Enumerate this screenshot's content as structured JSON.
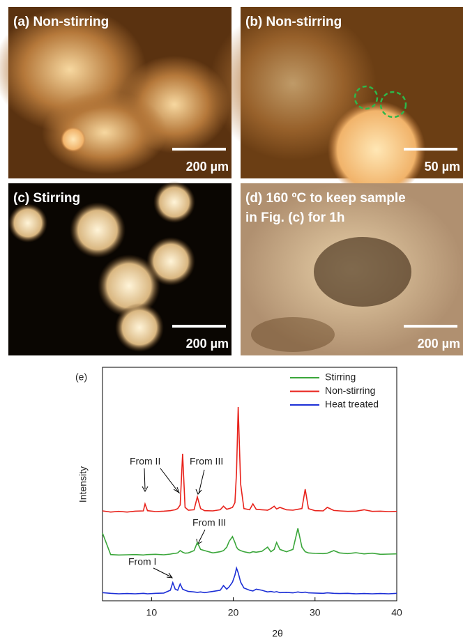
{
  "panels": [
    {
      "label": "(a) Non-stirring",
      "scale_bar": "200 µm"
    },
    {
      "label": "(b) Non-stirring",
      "scale_bar": "50 µm"
    },
    {
      "label": "(c) Stirring",
      "scale_bar": "200 µm"
    },
    {
      "label": "(d) 160 ºC to keep sample in Fig. (c) for 1h",
      "scale_bar": "200 µm"
    }
  ],
  "chart_data": {
    "type": "line",
    "panel_label": "(e)",
    "x_label": "2θ",
    "y_label": "Intensity",
    "xlim": [
      4,
      40
    ],
    "xticks": [
      10,
      20,
      30,
      40
    ],
    "ylim": [
      0,
      100
    ],
    "annotations": [
      "From II",
      "From III",
      "From III",
      "From I"
    ],
    "x": [
      4,
      5,
      6,
      7,
      8,
      9,
      9.2,
      9.5,
      10.5,
      11.5,
      12.3,
      12.6,
      12.9,
      13.2,
      13.5,
      13.8,
      14.1,
      14.5,
      15.2,
      15.6,
      16.0,
      16.5,
      17.5,
      18.4,
      18.8,
      19.2,
      19.5,
      19.9,
      20.2,
      20.4,
      20.6,
      20.9,
      21.3,
      22.0,
      22.4,
      22.8,
      23.5,
      24.2,
      24.6,
      25.0,
      25.3,
      25.7,
      26.5,
      27.3,
      27.9,
      28.4,
      28.8,
      29.2,
      30,
      31,
      31.5,
      32.3,
      33,
      34,
      35,
      36,
      37,
      38,
      39,
      40
    ],
    "series": [
      {
        "name": "Stirring",
        "color": "#3aa63a",
        "values": [
          29,
          19.8,
          19.6,
          19.7,
          19.8,
          19.6,
          19.7,
          19.8,
          19.9,
          19.7,
          20,
          20.2,
          20.3,
          20.5,
          21.5,
          20.8,
          20.4,
          20.5,
          21.5,
          25,
          22,
          21.5,
          20.5,
          21,
          21.5,
          23,
          25.5,
          27.5,
          25,
          23,
          22,
          21.5,
          21,
          20.5,
          21,
          20.8,
          21.2,
          23,
          21,
          22,
          25,
          22,
          21,
          22,
          31,
          23,
          21,
          20.5,
          20.3,
          20.2,
          20.4,
          21.5,
          20.5,
          20.2,
          20.6,
          20.1,
          20.4,
          19.9,
          20,
          20.1
        ]
      },
      {
        "name": "Non-stirring",
        "color": "#e8221b",
        "values": [
          38.5,
          38,
          38.3,
          38,
          38.4,
          38.5,
          41.5,
          38.6,
          38.2,
          38.4,
          38.6,
          38.8,
          39,
          39.5,
          41,
          63,
          40,
          38.8,
          39,
          44.5,
          39.5,
          38.6,
          38.5,
          39,
          40.5,
          39.2,
          39.5,
          40,
          42,
          55,
          83,
          50,
          39.5,
          39,
          41.5,
          39.2,
          39,
          38.8,
          39.5,
          40.5,
          39.3,
          40,
          39,
          38.8,
          39.2,
          39.5,
          47.8,
          39.5,
          38.6,
          38.5,
          40,
          38.7,
          38.5,
          38.3,
          38.4,
          39,
          38.3,
          38.4,
          38.2,
          38.3
        ]
      },
      {
        "name": "Heat treated",
        "color": "#1c2fd6",
        "values": [
          3.5,
          3.2,
          3,
          3.1,
          3,
          3.2,
          3.1,
          3,
          3.2,
          3.3,
          4.5,
          7.8,
          5,
          4.5,
          7.2,
          5,
          4.5,
          4,
          3.8,
          3.6,
          3.8,
          3.5,
          4,
          4.5,
          6.5,
          5,
          6,
          8,
          11,
          14,
          12,
          8,
          5.5,
          4.5,
          4.2,
          5,
          4.5,
          3.8,
          4,
          3.7,
          3.9,
          3.5,
          3.6,
          3.4,
          3.8,
          3.5,
          3.7,
          3.4,
          3.3,
          3.2,
          3.4,
          3.2,
          3.1,
          3.2,
          3,
          3.1,
          3,
          3.1,
          3,
          3.2
        ]
      }
    ]
  }
}
